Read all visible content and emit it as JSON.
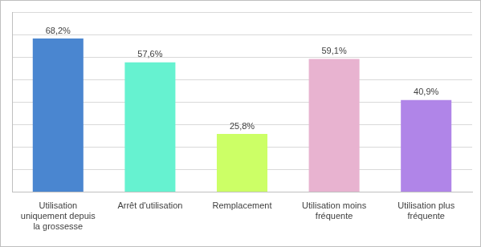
{
  "chart_data": {
    "type": "bar",
    "categories": [
      "Utilisation uniquement depuis la grossesse",
      "Arrêt d'utilisation",
      "Remplacement",
      "Utilisation moins fréquente",
      "Utilisation plus fréquente"
    ],
    "values": [
      68.2,
      57.6,
      25.8,
      59.1,
      40.9
    ],
    "value_labels": [
      "68,2%",
      "57,6%",
      "25,8%",
      "59,1%",
      "40,9%"
    ],
    "colors": [
      "#4a86d0",
      "#66f2d0",
      "#ccff66",
      "#e8b3d0",
      "#b085e8"
    ],
    "ylim": [
      0,
      80
    ],
    "yticks": [
      0,
      10,
      20,
      30,
      40,
      50,
      60,
      70,
      80
    ],
    "grid": true,
    "data_labels": true,
    "tick_labels": "x"
  }
}
